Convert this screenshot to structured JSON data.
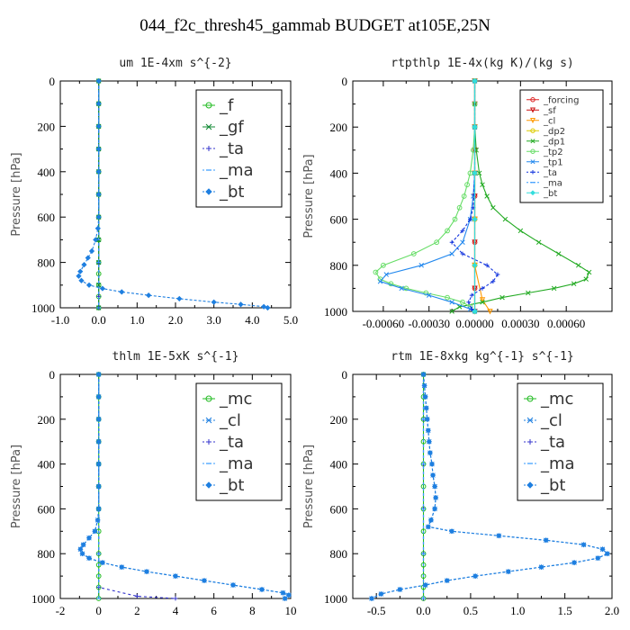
{
  "figure": {
    "title": "044_f2c_thresh45_gammab  BUDGET at105E,25N"
  },
  "chart_data": [
    {
      "type": "line",
      "title": "um  1E-4xm s^{-2}",
      "ylabel": "Pressure [hPa]",
      "xlabel": "",
      "xlim": [
        -1.0,
        5.0
      ],
      "ylim": [
        1000,
        0
      ],
      "xticks": [
        -1.0,
        0.0,
        1.0,
        2.0,
        3.0,
        4.0,
        5.0
      ],
      "xtick_labels": [
        "-1.0",
        "0.0",
        "1.0",
        "2.0",
        "3.0",
        "4.0",
        "5.0"
      ],
      "yticks": [
        0,
        200,
        400,
        600,
        800,
        1000
      ],
      "ytick_labels": [
        "0",
        "200",
        "400",
        "600",
        "800",
        "1000"
      ],
      "legend_position": "top-right",
      "legend_large": true,
      "series": [
        {
          "name": "_f",
          "color": "#22bb22",
          "marker": "circle",
          "dash": "",
          "y": [
            0,
            100,
            200,
            300,
            400,
            500,
            600,
            700,
            800,
            850,
            900,
            950,
            1000
          ],
          "x": [
            0,
            0,
            0,
            0,
            0,
            0,
            0,
            0,
            0,
            0,
            0,
            0,
            0
          ]
        },
        {
          "name": "_gf",
          "color": "#118833",
          "marker": "x",
          "dash": "",
          "y": [
            0,
            100,
            200,
            300,
            400,
            500,
            600,
            700,
            800,
            900,
            1000
          ],
          "x": [
            0,
            0,
            0,
            0,
            0,
            0,
            0,
            0,
            0,
            0,
            0
          ]
        },
        {
          "name": "_ta",
          "color": "#3333cc",
          "marker": "plus",
          "dash": "3,3",
          "y": [
            0,
            200,
            400,
            600,
            800,
            950,
            1000
          ],
          "x": [
            0,
            0,
            0,
            0,
            0,
            0,
            0
          ]
        },
        {
          "name": "_ma",
          "color": "#3399ff",
          "marker": "dash",
          "dash": "3,3",
          "y": [
            0,
            200,
            400,
            600,
            800,
            1000
          ],
          "x": [
            0,
            0,
            0,
            0,
            0,
            0
          ]
        },
        {
          "name": "_bt",
          "color": "#1e7fe0",
          "marker": "diamond",
          "dash": "3,2",
          "y": [
            0,
            100,
            200,
            300,
            400,
            500,
            600,
            650,
            700,
            750,
            780,
            810,
            840,
            860,
            880,
            900,
            915,
            930,
            945,
            960,
            975,
            985,
            995,
            1000
          ],
          "x": [
            0,
            0,
            0,
            0,
            0,
            0,
            0,
            -0.02,
            -0.08,
            -0.18,
            -0.28,
            -0.38,
            -0.48,
            -0.52,
            -0.45,
            -0.25,
            0.1,
            0.6,
            1.3,
            2.1,
            3.0,
            3.7,
            4.3,
            4.4
          ]
        }
      ]
    },
    {
      "type": "line",
      "title": "rtpthlp  1E-4x(kg K)/(kg s)",
      "ylabel": "Pressure [hPa]",
      "xlabel": "",
      "xlim": [
        -0.0008,
        0.0009
      ],
      "ylim": [
        1000,
        0
      ],
      "xticks": [
        -0.0006,
        -0.0003,
        0.0,
        0.0003,
        0.0006
      ],
      "xtick_labels": [
        "-0.00060",
        "-0.00030",
        "0.00000",
        "0.00030",
        "0.00060"
      ],
      "yticks": [
        0,
        200,
        400,
        600,
        800,
        1000
      ],
      "ytick_labels": [
        "0",
        "200",
        "400",
        "600",
        "800",
        "1000"
      ],
      "legend_position": "top-right",
      "legend_large": false,
      "series": [
        {
          "name": "_forcing",
          "color": "#dd2222",
          "marker": "circle",
          "dash": "",
          "y": [
            0,
            100,
            200,
            300,
            400,
            500,
            600,
            700,
            800,
            900,
            1000
          ],
          "x": [
            0,
            0,
            0,
            0,
            0,
            0,
            0,
            0,
            0,
            0,
            0
          ]
        },
        {
          "name": "_sf",
          "color": "#cc1111",
          "marker": "triangle",
          "dash": "",
          "y": [
            0,
            100,
            200,
            300,
            400,
            500,
            600,
            700,
            800,
            900,
            1000
          ],
          "x": [
            0,
            0,
            0,
            0,
            0,
            0,
            0,
            0,
            0,
            0,
            0
          ]
        },
        {
          "name": "_cl",
          "color": "#ff9900",
          "marker": "triangle",
          "dash": "",
          "y": [
            0,
            200,
            400,
            600,
            800,
            950,
            1000
          ],
          "x": [
            0,
            0,
            0,
            0,
            0,
            5e-05,
            0.0001
          ]
        },
        {
          "name": "_dp2",
          "color": "#ddcc00",
          "marker": "circle",
          "dash": "",
          "y": [
            0,
            200,
            400,
            600,
            800,
            1000
          ],
          "x": [
            0,
            0,
            0,
            0,
            0,
            0
          ]
        },
        {
          "name": "_dp1",
          "color": "#22aa22",
          "marker": "x",
          "dash": "",
          "y": [
            0,
            100,
            200,
            300,
            400,
            450,
            500,
            550,
            600,
            650,
            700,
            750,
            800,
            830,
            860,
            880,
            900,
            920,
            940,
            960,
            980,
            1000
          ],
          "x": [
            0,
            0,
            0,
            1e-05,
            3e-05,
            5e-05,
            8e-05,
            0.00012,
            0.0002,
            0.0003,
            0.00042,
            0.00055,
            0.00068,
            0.00075,
            0.00073,
            0.00065,
            0.00052,
            0.00035,
            0.00018,
            5e-05,
            -0.0001,
            -0.00015
          ]
        },
        {
          "name": "_tp2",
          "color": "#66dd66",
          "marker": "circle",
          "dash": "",
          "y": [
            0,
            100,
            200,
            300,
            400,
            450,
            500,
            550,
            600,
            650,
            700,
            750,
            800,
            830,
            860,
            880,
            900,
            920,
            940,
            960,
            980,
            1000
          ],
          "x": [
            0,
            0,
            0,
            -1e-05,
            -3e-05,
            -5e-05,
            -7e-05,
            -0.0001,
            -0.00013,
            -0.00018,
            -0.00025,
            -0.0004,
            -0.0006,
            -0.00065,
            -0.00062,
            -0.00055,
            -0.00045,
            -0.00032,
            -0.00018,
            -8e-05,
            -3e-05,
            0
          ]
        },
        {
          "name": "_tp1",
          "color": "#2288ee",
          "marker": "x",
          "dash": "",
          "y": [
            0,
            200,
            400,
            500,
            600,
            700,
            750,
            800,
            840,
            870,
            900,
            930,
            960,
            990,
            1000
          ],
          "x": [
            0,
            0,
            0,
            -1e-05,
            -3e-05,
            -8e-05,
            -0.00015,
            -0.00035,
            -0.00058,
            -0.00062,
            -0.00048,
            -0.0003,
            -0.00015,
            -3e-05,
            0
          ]
        },
        {
          "name": "_ta",
          "color": "#1133dd",
          "marker": "plus",
          "dash": "3,2",
          "y": [
            0,
            200,
            400,
            550,
            600,
            650,
            700,
            750,
            800,
            840,
            870,
            900,
            930,
            960,
            990,
            1000
          ],
          "x": [
            0,
            0,
            0,
            -1e-05,
            -3e-05,
            -8e-05,
            -0.00015,
            -8e-05,
            8e-05,
            0.00015,
            0.00012,
            5e-05,
            -2e-05,
            -4e-05,
            -2e-05,
            0
          ]
        },
        {
          "name": "_ma",
          "color": "#3399ff",
          "marker": "dash",
          "dash": "3,3",
          "y": [
            0,
            200,
            400,
            600,
            800,
            1000
          ],
          "x": [
            0,
            0,
            0,
            0,
            0,
            0
          ]
        },
        {
          "name": "_bt",
          "color": "#33dddd",
          "marker": "diamond",
          "dash": "",
          "y": [
            0,
            200,
            400,
            600,
            800,
            1000
          ],
          "x": [
            0,
            0,
            0,
            0,
            0,
            0
          ]
        }
      ]
    },
    {
      "type": "line",
      "title": "thlm  1E-5xK s^{-1}",
      "ylabel": "Pressure [hPa]",
      "xlabel": "",
      "xlim": [
        -2,
        10
      ],
      "ylim": [
        1000,
        0
      ],
      "xticks": [
        -2,
        0,
        2,
        4,
        6,
        8,
        10
      ],
      "xtick_labels": [
        "-2",
        "0",
        "2",
        "4",
        "6",
        "8",
        "10"
      ],
      "yticks": [
        0,
        200,
        400,
        600,
        800,
        1000
      ],
      "ytick_labels": [
        "0",
        "200",
        "400",
        "600",
        "800",
        "1000"
      ],
      "legend_position": "top-right",
      "legend_large": true,
      "series": [
        {
          "name": "_mc",
          "color": "#22bb22",
          "marker": "circle",
          "dash": "",
          "y": [
            0,
            100,
            200,
            300,
            400,
            500,
            600,
            700,
            800,
            850,
            900,
            950,
            1000
          ],
          "x": [
            0,
            0,
            0,
            0,
            0,
            0,
            0,
            0,
            0,
            0,
            0,
            0,
            0
          ]
        },
        {
          "name": "_cl",
          "color": "#1e7fe0",
          "marker": "x",
          "dash": "3,2",
          "y": [
            0,
            100,
            200,
            300,
            400,
            500,
            600,
            650,
            700,
            730,
            760,
            780,
            800,
            820,
            840,
            860,
            880,
            900,
            920,
            940,
            960,
            975,
            985,
            1000
          ],
          "x": [
            0,
            0,
            0,
            0,
            0,
            0,
            0,
            -0.05,
            -0.2,
            -0.5,
            -0.8,
            -0.95,
            -0.85,
            -0.5,
            0.2,
            1.2,
            2.5,
            4.0,
            5.5,
            7.0,
            8.5,
            9.6,
            9.9,
            9.7
          ]
        },
        {
          "name": "_ta",
          "color": "#3333cc",
          "marker": "plus",
          "dash": "3,3",
          "y": [
            0,
            200,
            400,
            600,
            800,
            950,
            990,
            1000
          ],
          "x": [
            0,
            0,
            0,
            0,
            0,
            0,
            2.0,
            4.0
          ]
        },
        {
          "name": "_ma",
          "color": "#3399ff",
          "marker": "dash",
          "dash": "3,3",
          "y": [
            0,
            200,
            400,
            600,
            800,
            1000
          ],
          "x": [
            0,
            0,
            0,
            0,
            0,
            0
          ]
        },
        {
          "name": "_bt",
          "color": "#1e7fe0",
          "marker": "diamond",
          "dash": "3,2",
          "y": [
            0,
            100,
            200,
            300,
            400,
            500,
            600,
            650,
            700,
            730,
            760,
            780,
            800,
            820,
            840,
            860,
            880,
            900,
            920,
            940,
            960,
            975,
            985,
            1000
          ],
          "x": [
            0,
            0,
            0,
            0,
            0,
            0,
            0,
            -0.05,
            -0.2,
            -0.5,
            -0.8,
            -0.95,
            -0.85,
            -0.5,
            0.2,
            1.2,
            2.5,
            4.0,
            5.5,
            7.0,
            8.5,
            9.6,
            9.9,
            9.7
          ]
        }
      ]
    },
    {
      "type": "line",
      "title": "rtm  1E-8xkg kg^{-1} s^{-1}",
      "ylabel": "Pressure [hPa]",
      "xlabel": "",
      "xlim": [
        -0.75,
        2.0
      ],
      "ylim": [
        1000,
        0
      ],
      "xticks": [
        -0.5,
        0.0,
        0.5,
        1.0,
        1.5,
        2.0
      ],
      "xtick_labels": [
        "-0.5",
        "0.0",
        "0.5",
        "1.0",
        "1.5",
        "2.0"
      ],
      "yticks": [
        0,
        200,
        400,
        600,
        800,
        1000
      ],
      "ytick_labels": [
        "0",
        "200",
        "400",
        "600",
        "800",
        "1000"
      ],
      "legend_position": "top-right",
      "legend_large": true,
      "series": [
        {
          "name": "_mc",
          "color": "#22bb22",
          "marker": "circle",
          "dash": "",
          "y": [
            0,
            100,
            200,
            300,
            400,
            500,
            600,
            700,
            800,
            850,
            900,
            950,
            1000
          ],
          "x": [
            0,
            0,
            0,
            0,
            0,
            0,
            0,
            0,
            0,
            0,
            0,
            0,
            0
          ]
        },
        {
          "name": "_cl",
          "color": "#1e7fe0",
          "marker": "x",
          "dash": "3,2",
          "y": [
            0,
            50,
            100,
            150,
            200,
            250,
            300,
            350,
            400,
            450,
            500,
            550,
            600,
            650,
            680,
            700,
            720,
            740,
            760,
            780,
            800,
            820,
            840,
            860,
            880,
            900,
            920,
            940,
            960,
            980,
            1000
          ],
          "x": [
            0,
            0.01,
            0.02,
            0.03,
            0.04,
            0.05,
            0.06,
            0.07,
            0.09,
            0.1,
            0.12,
            0.13,
            0.12,
            0.08,
            0.05,
            0.3,
            0.8,
            1.3,
            1.7,
            1.9,
            1.95,
            1.85,
            1.6,
            1.25,
            0.9,
            0.55,
            0.25,
            0.02,
            -0.25,
            -0.45,
            -0.55
          ]
        },
        {
          "name": "_ta",
          "color": "#3333cc",
          "marker": "plus",
          "dash": "3,3",
          "y": [
            0,
            200,
            400,
            600,
            800,
            1000
          ],
          "x": [
            0,
            0,
            0,
            0,
            0,
            0
          ]
        },
        {
          "name": "_ma",
          "color": "#3399ff",
          "marker": "dash",
          "dash": "3,3",
          "y": [
            0,
            200,
            400,
            600,
            800,
            1000
          ],
          "x": [
            0,
            0,
            0,
            0,
            0,
            0
          ]
        },
        {
          "name": "_bt",
          "color": "#1e7fe0",
          "marker": "diamond",
          "dash": "3,2",
          "y": [
            0,
            50,
            100,
            150,
            200,
            250,
            300,
            350,
            400,
            450,
            500,
            550,
            600,
            650,
            680,
            700,
            720,
            740,
            760,
            780,
            800,
            820,
            840,
            860,
            880,
            900,
            920,
            940,
            960,
            980,
            1000
          ],
          "x": [
            0,
            0.01,
            0.02,
            0.03,
            0.04,
            0.05,
            0.06,
            0.07,
            0.09,
            0.1,
            0.12,
            0.13,
            0.12,
            0.08,
            0.05,
            0.3,
            0.8,
            1.3,
            1.7,
            1.9,
            1.95,
            1.85,
            1.6,
            1.25,
            0.9,
            0.55,
            0.25,
            0.02,
            -0.25,
            -0.45,
            -0.55
          ]
        }
      ]
    }
  ]
}
